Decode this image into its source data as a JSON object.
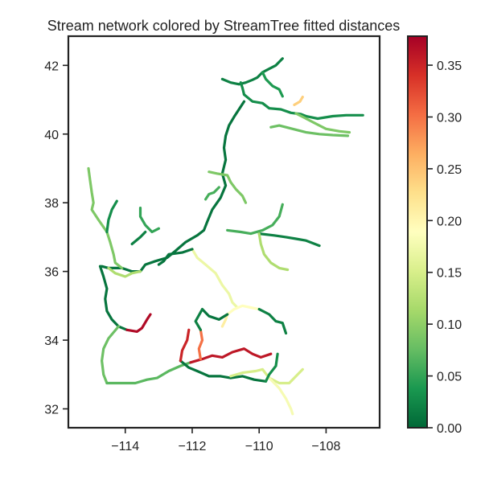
{
  "chart_data": {
    "type": "line",
    "title": "Stream network colored by StreamTree fitted distances",
    "xlabel": "",
    "ylabel": "",
    "xlim": [
      -115.7,
      -106.4
    ],
    "ylim": [
      31.45,
      42.85
    ],
    "xticks": [
      -114,
      -112,
      -110,
      -108
    ],
    "yticks": [
      32,
      34,
      36,
      38,
      40,
      42
    ],
    "xtick_labels": [
      "−114",
      "−112",
      "−110",
      "−108"
    ],
    "ytick_labels": [
      "32",
      "34",
      "36",
      "38",
      "40",
      "42"
    ],
    "colorbar": {
      "colormap": "RdYlGn_r",
      "range": [
        0.0,
        0.378
      ],
      "ticks": [
        0.0,
        0.05,
        0.1,
        0.15,
        0.2,
        0.25,
        0.3,
        0.35
      ],
      "tick_labels": [
        "0.00",
        "0.05",
        "0.10",
        "0.15",
        "0.20",
        "0.25",
        "0.30",
        "0.35"
      ],
      "stops": [
        "#006837",
        "#1a9850",
        "#66bd63",
        "#a6d96a",
        "#d9ef8b",
        "#ffffbf",
        "#fee08b",
        "#fdae61",
        "#f46d43",
        "#d73027",
        "#a50026"
      ]
    },
    "series": [
      {
        "distance": 0.02,
        "points": [
          [
            -111.1,
            41.6
          ],
          [
            -110.85,
            41.5
          ],
          [
            -110.6,
            41.45
          ],
          [
            -110.4,
            41.5
          ],
          [
            -110.2,
            41.58
          ],
          [
            -110.05,
            41.65
          ],
          [
            -109.9,
            41.8
          ],
          [
            -109.7,
            41.9
          ],
          [
            -109.5,
            42.0
          ],
          [
            -109.3,
            42.2
          ]
        ]
      },
      {
        "distance": 0.03,
        "points": [
          [
            -110.55,
            41.5
          ],
          [
            -110.5,
            41.35
          ],
          [
            -110.45,
            41.15
          ]
        ]
      },
      {
        "distance": 0.04,
        "points": [
          [
            -109.9,
            41.8
          ],
          [
            -109.8,
            41.6
          ],
          [
            -109.6,
            41.4
          ],
          [
            -109.4,
            41.3
          ],
          [
            -109.3,
            41.1
          ]
        ]
      },
      {
        "distance": 0.03,
        "points": [
          [
            -110.45,
            41.15
          ],
          [
            -110.2,
            40.95
          ],
          [
            -109.9,
            40.9
          ],
          [
            -109.7,
            40.75
          ],
          [
            -109.35,
            40.72
          ],
          [
            -109.05,
            40.62
          ],
          [
            -108.75,
            40.58
          ],
          [
            -108.6,
            40.52
          ],
          [
            -108.25,
            40.45
          ],
          [
            -107.8,
            40.52
          ],
          [
            -107.4,
            40.55
          ],
          [
            -106.9,
            40.55
          ]
        ]
      },
      {
        "distance": 0.24,
        "points": [
          [
            -108.95,
            40.85
          ],
          [
            -108.78,
            40.95
          ],
          [
            -108.7,
            41.08
          ]
        ]
      },
      {
        "distance": 0.09,
        "points": [
          [
            -108.9,
            40.6
          ],
          [
            -108.6,
            40.45
          ],
          [
            -108.3,
            40.3
          ],
          [
            -108.0,
            40.15
          ],
          [
            -107.6,
            40.08
          ],
          [
            -107.3,
            40.05
          ]
        ]
      },
      {
        "distance": 0.08,
        "points": [
          [
            -109.65,
            40.2
          ],
          [
            -109.4,
            40.25
          ],
          [
            -109.0,
            40.15
          ],
          [
            -108.6,
            40.05
          ],
          [
            -108.2,
            40.0
          ],
          [
            -107.8,
            39.97
          ],
          [
            -107.35,
            39.95
          ]
        ]
      },
      {
        "distance": 0.01,
        "points": [
          [
            -110.45,
            40.95
          ],
          [
            -110.75,
            40.5
          ],
          [
            -110.9,
            40.25
          ],
          [
            -111.0,
            39.95
          ],
          [
            -111.05,
            39.6
          ],
          [
            -111.0,
            39.25
          ],
          [
            -111.1,
            38.85
          ],
          [
            -111.0,
            38.5
          ],
          [
            -111.15,
            38.15
          ],
          [
            -111.4,
            37.8
          ],
          [
            -111.55,
            37.45
          ],
          [
            -111.65,
            37.2
          ],
          [
            -111.85,
            37.05
          ],
          [
            -112.2,
            36.85
          ],
          [
            -112.5,
            36.6
          ],
          [
            -112.75,
            36.4
          ],
          [
            -113.1,
            36.3
          ],
          [
            -113.4,
            36.2
          ],
          [
            -113.55,
            36.0
          ],
          [
            -113.8,
            36.0
          ],
          [
            -114.1,
            36.1
          ],
          [
            -114.5,
            36.1
          ],
          [
            -114.7,
            36.15
          ]
        ]
      },
      {
        "distance": 0.09,
        "points": [
          [
            -111.5,
            38.9
          ],
          [
            -111.25,
            38.85
          ],
          [
            -110.95,
            38.8
          ],
          [
            -110.85,
            38.6
          ],
          [
            -110.7,
            38.4
          ],
          [
            -110.5,
            38.2
          ],
          [
            -110.4,
            38.0
          ]
        ]
      },
      {
        "distance": 0.06,
        "points": [
          [
            -111.6,
            38.1
          ],
          [
            -111.5,
            38.25
          ],
          [
            -111.35,
            38.3
          ],
          [
            -111.2,
            38.45
          ]
        ]
      },
      {
        "distance": 0.06,
        "points": [
          [
            -110.95,
            37.2
          ],
          [
            -110.55,
            37.15
          ],
          [
            -110.25,
            37.1
          ],
          [
            -109.9,
            37.2
          ],
          [
            -109.6,
            37.35
          ],
          [
            -109.4,
            37.6
          ],
          [
            -109.3,
            37.95
          ]
        ]
      },
      {
        "distance": 0.02,
        "points": [
          [
            -110.0,
            37.1
          ],
          [
            -109.55,
            37.05
          ],
          [
            -109.2,
            37.0
          ],
          [
            -108.9,
            36.95
          ],
          [
            -108.6,
            36.9
          ],
          [
            -108.2,
            36.75
          ]
        ]
      },
      {
        "distance": 0.12,
        "points": [
          [
            -110.0,
            37.1
          ],
          [
            -109.95,
            36.8
          ],
          [
            -109.85,
            36.5
          ],
          [
            -109.65,
            36.25
          ],
          [
            -109.4,
            36.1
          ],
          [
            -109.15,
            36.05
          ]
        ]
      },
      {
        "distance": 0.17,
        "points": [
          [
            -112.0,
            36.65
          ],
          [
            -111.85,
            36.4
          ],
          [
            -111.6,
            36.2
          ],
          [
            -111.3,
            35.95
          ],
          [
            -111.1,
            35.6
          ],
          [
            -110.9,
            35.35
          ],
          [
            -110.8,
            35.1
          ],
          [
            -110.65,
            34.95
          ]
        ]
      },
      {
        "distance": 0.19,
        "points": [
          [
            -110.95,
            34.75
          ],
          [
            -110.75,
            34.9
          ],
          [
            -110.5,
            35.0
          ],
          [
            -110.25,
            34.95
          ],
          [
            -110.0,
            34.9
          ]
        ]
      },
      {
        "distance": 0.21,
        "points": [
          [
            -110.95,
            34.75
          ],
          [
            -111.0,
            34.6
          ],
          [
            -111.1,
            34.4
          ]
        ]
      },
      {
        "distance": 0.02,
        "points": [
          [
            -110.0,
            34.9
          ],
          [
            -109.7,
            34.75
          ],
          [
            -109.5,
            34.55
          ],
          [
            -109.3,
            34.5
          ],
          [
            -109.2,
            34.2
          ]
        ]
      },
      {
        "distance": 0.01,
        "points": [
          [
            -111.7,
            34.9
          ],
          [
            -111.5,
            34.7
          ],
          [
            -111.2,
            34.6
          ],
          [
            -110.95,
            34.75
          ]
        ]
      },
      {
        "distance": 0.01,
        "points": [
          [
            -112.0,
            36.65
          ],
          [
            -112.3,
            36.55
          ],
          [
            -112.7,
            36.5
          ],
          [
            -112.85,
            36.3
          ],
          [
            -113.0,
            36.2
          ]
        ]
      },
      {
        "distance": 0.09,
        "points": [
          [
            -115.1,
            39.0
          ],
          [
            -115.05,
            38.65
          ],
          [
            -115.0,
            38.3
          ],
          [
            -114.95,
            38.0
          ],
          [
            -115.0,
            37.8
          ],
          [
            -114.8,
            37.5
          ],
          [
            -114.55,
            37.15
          ],
          [
            -114.45,
            36.85
          ],
          [
            -114.35,
            36.5
          ],
          [
            -114.3,
            36.25
          ],
          [
            -114.1,
            36.1
          ]
        ]
      },
      {
        "distance": 0.03,
        "points": [
          [
            -114.25,
            38.05
          ],
          [
            -114.4,
            37.8
          ],
          [
            -114.5,
            37.5
          ],
          [
            -114.55,
            37.15
          ]
        ]
      },
      {
        "distance": 0.05,
        "points": [
          [
            -113.55,
            37.85
          ],
          [
            -113.55,
            37.6
          ],
          [
            -113.4,
            37.35
          ],
          [
            -113.2,
            37.15
          ],
          [
            -113.0,
            37.25
          ]
        ]
      },
      {
        "distance": 0.02,
        "points": [
          [
            -113.8,
            36.8
          ],
          [
            -113.55,
            37.0
          ],
          [
            -113.4,
            37.15
          ]
        ]
      },
      {
        "distance": 0.12,
        "points": [
          [
            -114.5,
            36.1
          ],
          [
            -114.3,
            35.95
          ],
          [
            -114.0,
            35.85
          ],
          [
            -113.8,
            35.95
          ],
          [
            -113.55,
            36.0
          ]
        ]
      },
      {
        "distance": 0.01,
        "points": [
          [
            -114.75,
            36.15
          ],
          [
            -114.65,
            35.85
          ],
          [
            -114.55,
            35.5
          ],
          [
            -114.6,
            35.2
          ],
          [
            -114.55,
            34.85
          ],
          [
            -114.4,
            34.6
          ],
          [
            -114.2,
            34.4
          ],
          [
            -113.95,
            34.3
          ]
        ]
      },
      {
        "distance": 0.37,
        "points": [
          [
            -113.95,
            34.3
          ],
          [
            -113.65,
            34.25
          ],
          [
            -113.5,
            34.35
          ],
          [
            -113.35,
            34.6
          ],
          [
            -113.25,
            34.75
          ]
        ]
      },
      {
        "distance": 0.08,
        "points": [
          [
            -114.2,
            34.4
          ],
          [
            -114.5,
            34.05
          ],
          [
            -114.65,
            33.75
          ],
          [
            -114.7,
            33.4
          ],
          [
            -114.65,
            33.0
          ],
          [
            -114.55,
            32.75
          ]
        ]
      },
      {
        "distance": 0.07,
        "points": [
          [
            -114.55,
            32.75
          ],
          [
            -114.1,
            32.75
          ],
          [
            -113.7,
            32.75
          ],
          [
            -113.35,
            32.85
          ],
          [
            -113.05,
            32.9
          ],
          [
            -112.7,
            33.1
          ],
          [
            -112.35,
            33.25
          ],
          [
            -112.05,
            33.35
          ]
        ]
      },
      {
        "distance": 0.01,
        "points": [
          [
            -112.35,
            33.4
          ],
          [
            -112.1,
            33.2
          ],
          [
            -111.85,
            33.1
          ],
          [
            -111.5,
            32.95
          ],
          [
            -111.15,
            32.95
          ],
          [
            -110.85,
            32.9
          ],
          [
            -110.5,
            32.95
          ],
          [
            -110.15,
            32.85
          ],
          [
            -109.8,
            32.8
          ]
        ]
      },
      {
        "distance": 0.15,
        "points": [
          [
            -110.85,
            32.95
          ],
          [
            -110.5,
            33.05
          ],
          [
            -110.1,
            33.1
          ],
          [
            -109.9,
            33.15
          ],
          [
            -109.7,
            32.9
          ],
          [
            -109.4,
            32.75
          ],
          [
            -109.1,
            32.75
          ],
          [
            -108.9,
            32.95
          ],
          [
            -108.7,
            33.15
          ]
        ]
      },
      {
        "distance": 0.18,
        "points": [
          [
            -109.7,
            32.9
          ],
          [
            -109.4,
            32.6
          ],
          [
            -109.2,
            32.3
          ],
          [
            -109.05,
            32.0
          ],
          [
            -109.0,
            31.85
          ]
        ]
      },
      {
        "distance": 0.03,
        "points": [
          [
            -109.8,
            32.8
          ],
          [
            -109.7,
            33.0
          ],
          [
            -109.5,
            33.25
          ],
          [
            -109.45,
            33.6
          ]
        ]
      },
      {
        "distance": 0.35,
        "points": [
          [
            -112.35,
            33.4
          ],
          [
            -112.3,
            33.7
          ],
          [
            -112.15,
            34.0
          ],
          [
            -112.1,
            34.3
          ]
        ]
      },
      {
        "distance": 0.36,
        "points": [
          [
            -112.05,
            33.35
          ],
          [
            -111.7,
            33.45
          ],
          [
            -111.4,
            33.55
          ],
          [
            -111.1,
            33.5
          ],
          [
            -110.8,
            33.65
          ],
          [
            -110.45,
            33.75
          ],
          [
            -110.2,
            33.6
          ],
          [
            -109.95,
            33.5
          ],
          [
            -109.65,
            33.6
          ]
        ]
      },
      {
        "distance": 0.3,
        "points": [
          [
            -111.75,
            33.45
          ],
          [
            -111.8,
            33.75
          ],
          [
            -111.7,
            34.0
          ],
          [
            -111.75,
            34.3
          ]
        ]
      },
      {
        "distance": 0.02,
        "points": [
          [
            -111.7,
            34.9
          ],
          [
            -111.9,
            34.55
          ],
          [
            -111.75,
            34.3
          ]
        ]
      }
    ]
  }
}
